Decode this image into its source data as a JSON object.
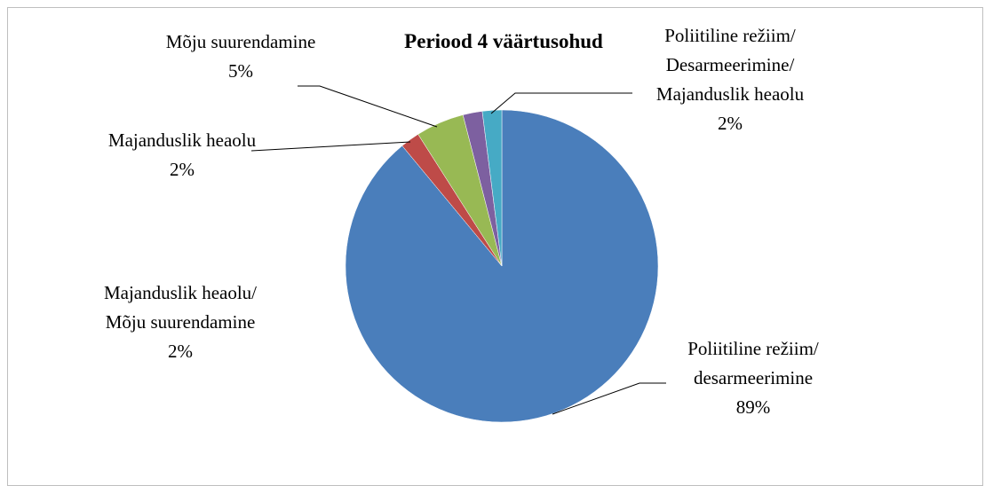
{
  "chart_data": {
    "type": "pie",
    "title": "Periood 4 väärtusohud",
    "categories": [
      "Poliitiline režiim/ desarmeerimine",
      "Majanduslik heaolu",
      "Mõju suurendamine",
      "Majanduslik heaolu/ Mõju suurendamine",
      "Poliitiline režiim/ Desarmeerimine/ Majanduslik heaolu"
    ],
    "values": [
      89,
      2,
      5,
      2,
      2
    ],
    "value_labels": [
      "89%",
      "2%",
      "5%",
      "2%",
      "2%"
    ],
    "colors": [
      "#4a7ebb",
      "#be4b48",
      "#98b954",
      "#7d60a0",
      "#46aac5"
    ]
  }
}
